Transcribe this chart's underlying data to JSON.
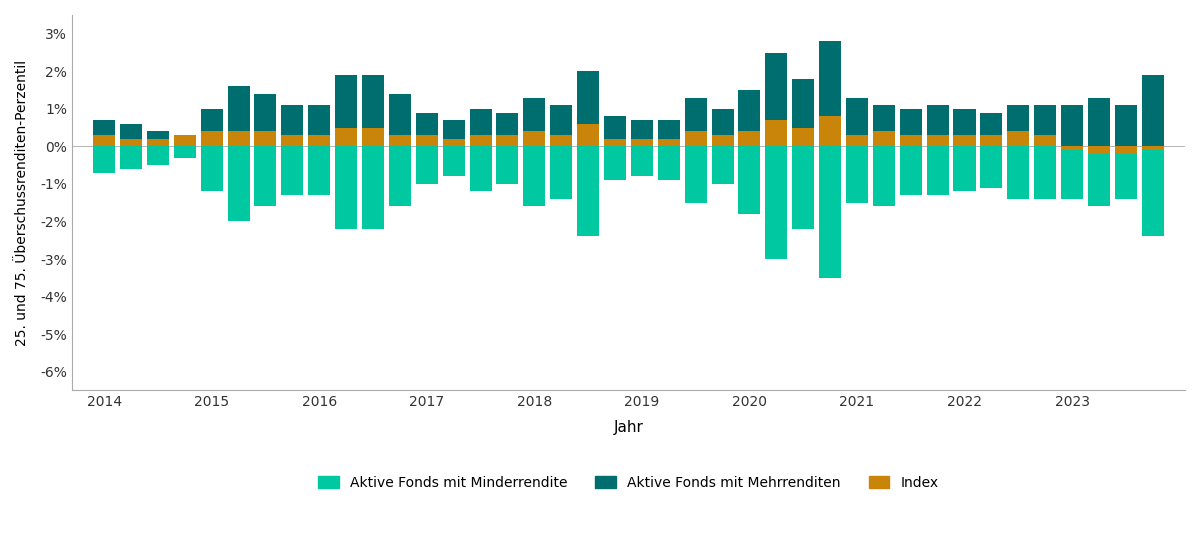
{
  "xlabel": "Jahr",
  "ylabel": "25. und 75. Überschussrenditen-Perzentil",
  "color_underperform": "#00C8A0",
  "color_outperform": "#006E6E",
  "color_index": "#C8850A",
  "background": "#FFFFFF",
  "ylim": [
    -0.065,
    0.035
  ],
  "legend_labels": [
    "Aktive Fonds mit Minderrendite",
    "Aktive Fonds mit Mehrrenditen",
    "Index"
  ],
  "outperform": [
    0.007,
    0.006,
    0.004,
    0.003,
    0.01,
    0.016,
    0.014,
    0.011,
    0.011,
    0.019,
    0.019,
    0.014,
    0.009,
    0.007,
    0.01,
    0.009,
    0.013,
    0.011,
    0.02,
    0.008,
    0.007,
    0.007,
    0.013,
    0.01,
    0.015,
    0.025,
    0.018,
    0.028,
    0.013,
    0.011,
    0.01,
    0.011,
    0.01,
    0.009,
    0.011,
    0.011,
    0.011,
    0.013,
    0.011,
    0.019
  ],
  "underperform": [
    -0.007,
    -0.006,
    -0.005,
    -0.003,
    -0.012,
    -0.02,
    -0.016,
    -0.013,
    -0.013,
    -0.022,
    -0.022,
    -0.016,
    -0.01,
    -0.008,
    -0.012,
    -0.01,
    -0.016,
    -0.014,
    -0.024,
    -0.009,
    -0.008,
    -0.009,
    -0.015,
    -0.01,
    -0.018,
    -0.03,
    -0.022,
    -0.035,
    -0.015,
    -0.016,
    -0.013,
    -0.013,
    -0.012,
    -0.011,
    -0.014,
    -0.014,
    -0.014,
    -0.016,
    -0.014,
    -0.024
  ],
  "index": [
    0.003,
    0.002,
    0.002,
    0.003,
    0.004,
    0.004,
    0.004,
    0.003,
    0.003,
    0.005,
    0.005,
    0.003,
    0.003,
    0.002,
    0.003,
    0.003,
    0.004,
    0.003,
    0.006,
    0.002,
    0.002,
    0.002,
    0.004,
    0.003,
    0.004,
    0.007,
    0.005,
    0.008,
    0.003,
    0.004,
    0.003,
    0.003,
    0.003,
    0.003,
    0.004,
    0.003,
    -0.001,
    -0.002,
    -0.002,
    -0.001
  ],
  "n_per_year": 4,
  "start_year": 2014,
  "n_years": 10,
  "xtick_years": [
    2014,
    2015,
    2016,
    2017,
    2018,
    2019,
    2020,
    2021,
    2022,
    2023
  ]
}
